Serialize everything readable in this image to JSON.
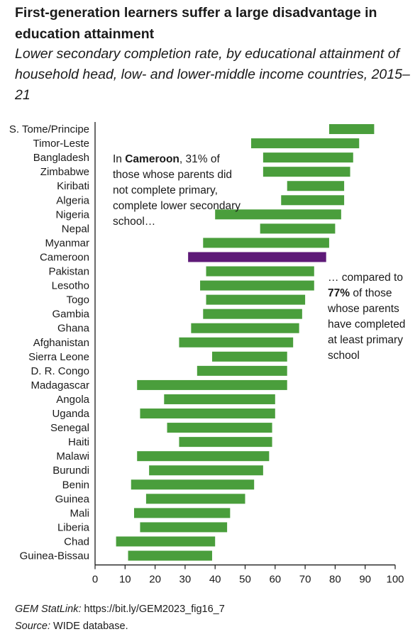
{
  "header": {
    "title": "First-generation learners suffer a large disadvantage in education attainment",
    "subtitle": "Lower secondary completion rate, by educational attainment of household head, low- and lower-middle income countries, 2015–21"
  },
  "annotations": {
    "left": {
      "pre": "In ",
      "bold": "Cameroon",
      "post": ", 31% of those whose parents did not complete primary, complete lower secondary school…"
    },
    "right": {
      "pre": "… compared to ",
      "bold": "77%",
      "post": " of those whose parents have completed at least primary school"
    }
  },
  "footer": {
    "statlink_label": "GEM StatLink:",
    "statlink_url": " https://bit.ly/GEM2023_fig16_7",
    "source_label": "Source:",
    "source_text": " WIDE database."
  },
  "colors": {
    "bar": "#4a9e3c",
    "highlight": "#5e1a78",
    "axis": "#1a1a1a"
  },
  "chart_data": {
    "type": "bar",
    "orientation": "horizontal-range",
    "xlim": [
      0,
      100
    ],
    "xticks": [
      0,
      10,
      20,
      30,
      40,
      50,
      60,
      70,
      80,
      90,
      100
    ],
    "grid": false,
    "highlight": "Cameroon",
    "categories": [
      "S. Tome/Principe",
      "Timor-Leste",
      "Bangladesh",
      "Zimbabwe",
      "Kiribati",
      "Algeria",
      "Nigeria",
      "Nepal",
      "Myanmar",
      "Cameroon",
      "Pakistan",
      "Lesotho",
      "Togo",
      "Gambia",
      "Ghana",
      "Afghanistan",
      "Sierra Leone",
      "D. R. Congo",
      "Madagascar",
      "Angola",
      "Uganda",
      "Senegal",
      "Haiti",
      "Malawi",
      "Burundi",
      "Benin",
      "Guinea",
      "Mali",
      "Liberia",
      "Chad",
      "Guinea-Bissau"
    ],
    "low": [
      78,
      52,
      56,
      56,
      64,
      62,
      40,
      55,
      36,
      31,
      37,
      35,
      37,
      36,
      32,
      28,
      39,
      34,
      14,
      23,
      15,
      24,
      28,
      14,
      18,
      12,
      17,
      13,
      15,
      7,
      11
    ],
    "high": [
      93,
      88,
      86,
      85,
      83,
      83,
      82,
      80,
      78,
      77,
      73,
      73,
      70,
      69,
      68,
      66,
      64,
      64,
      64,
      60,
      60,
      59,
      59,
      58,
      56,
      53,
      50,
      45,
      44,
      40,
      39
    ]
  }
}
